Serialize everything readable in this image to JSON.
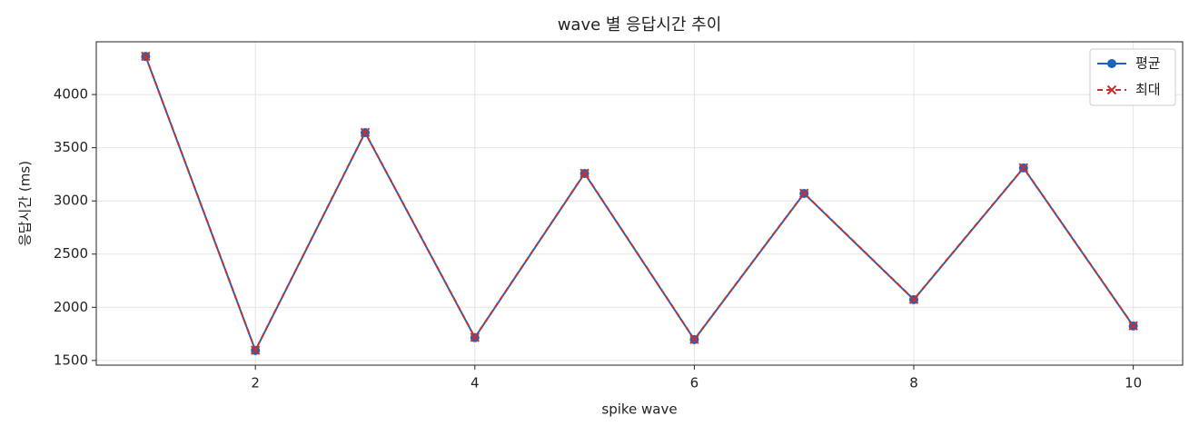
{
  "chart_data": {
    "type": "line",
    "title": "wave 별 응답시간 추이",
    "x_label": "spike wave",
    "y_label": "응답시간 (ms)",
    "x": [
      1,
      2,
      3,
      4,
      5,
      6,
      7,
      8,
      9,
      10
    ],
    "series": [
      {
        "name": "평균",
        "color": "#1f63c0",
        "marker": "circle",
        "dashed": false,
        "values": [
          4358,
          1594,
          3642,
          1715,
          3258,
          1696,
          3070,
          2072,
          3310,
          1824
        ]
      },
      {
        "name": "최대",
        "color": "#c8302e",
        "marker": "x",
        "dashed": true,
        "values": [
          4360,
          1596,
          3644,
          1717,
          3260,
          1698,
          3072,
          2074,
          3312,
          1826
        ]
      }
    ],
    "xlim": [
      0.55,
      10.45
    ],
    "ylim": [
      1456,
      4496
    ],
    "xticks": [
      2,
      4,
      6,
      8,
      10
    ],
    "yticks": [
      1500,
      2000,
      2500,
      3000,
      3500,
      4000
    ],
    "grid": true,
    "legend": "upper-right"
  }
}
